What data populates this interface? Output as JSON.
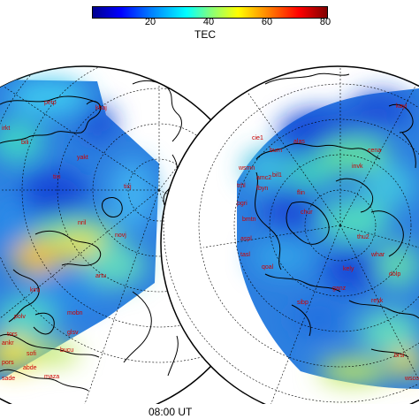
{
  "colorbar": {
    "label": "TEC",
    "ticks": [
      "20",
      "40",
      "60",
      "80"
    ],
    "range": [
      0,
      80
    ],
    "colormap": "jet"
  },
  "time_label": "08:00 UT",
  "left_map": {
    "stations": [
      "petp",
      "khaj",
      "yakt",
      "irkt",
      "bili",
      "tixi",
      "tixj",
      "nril",
      "novj",
      "artu",
      "kiru",
      "mobn",
      "glsv",
      "polv",
      "bucu",
      "sofi",
      "ankr",
      "tors",
      "abde",
      "pors",
      "sade",
      "maza"
    ]
  },
  "right_map": {
    "stations": [
      "kayi",
      "cie1",
      "burn",
      "alas",
      "amc2",
      "invk",
      "cena",
      "bil1",
      "wsmn",
      "trhl",
      "fbyn",
      "flin",
      "chur",
      "thu2",
      "pgri",
      "bmtn",
      "aspl",
      "tasl",
      "qoal",
      "kely",
      "ganz",
      "reyk",
      "sibp",
      "brsi",
      "wsco",
      "dolp",
      "whar"
    ]
  },
  "colors": {
    "station_label": "#cc0000",
    "coastline": "#000000",
    "grid": "#000000"
  }
}
